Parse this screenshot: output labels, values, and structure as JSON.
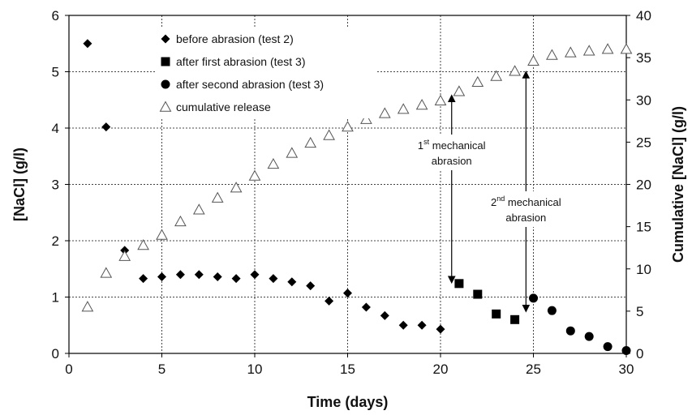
{
  "chart_data": {
    "type": "scatter",
    "xlabel": "Time (days)",
    "ylabel": "[NaCl] (g/l)",
    "y2label": "Cumulative [NaCl] (g/l)",
    "xlim": [
      0,
      30
    ],
    "ylim": [
      0,
      6
    ],
    "y2lim": [
      0,
      40
    ],
    "xticks": [
      "0",
      "5",
      "10",
      "15",
      "20",
      "25",
      "30"
    ],
    "yticks": [
      "0",
      "1",
      "2",
      "3",
      "4",
      "5",
      "6"
    ],
    "y2ticks": [
      "0",
      "5",
      "10",
      "15",
      "20",
      "25",
      "30",
      "35",
      "40"
    ],
    "grid": true,
    "legend_position": "top-left",
    "series": [
      {
        "name": "before abrasion (test 2)",
        "marker": "diamond",
        "axis": "left",
        "x": [
          1,
          2,
          3,
          4,
          5,
          6,
          7,
          8,
          9,
          10,
          11,
          12,
          13,
          14,
          15,
          16,
          17,
          18,
          19,
          20
        ],
        "y": [
          5.5,
          4.02,
          1.83,
          1.33,
          1.36,
          1.4,
          1.4,
          1.36,
          1.33,
          1.4,
          1.33,
          1.27,
          1.2,
          0.93,
          1.07,
          0.82,
          0.67,
          0.5,
          0.5,
          0.43
        ]
      },
      {
        "name": "after first abrasion (test 3)",
        "marker": "square",
        "axis": "left",
        "x": [
          21,
          22,
          23,
          24
        ],
        "y": [
          1.24,
          1.05,
          0.7,
          0.6
        ]
      },
      {
        "name": "after second abrasion (test 3)",
        "marker": "circle",
        "axis": "left",
        "x": [
          25,
          26,
          27,
          28,
          29,
          30
        ],
        "y": [
          0.98,
          0.76,
          0.4,
          0.3,
          0.12,
          0.05
        ]
      },
      {
        "name": "cumulative release",
        "marker": "triangle-open",
        "axis": "right",
        "x": [
          1,
          2,
          3,
          4,
          5,
          6,
          7,
          8,
          9,
          10,
          11,
          12,
          13,
          14,
          15,
          16,
          17,
          18,
          19,
          20,
          21,
          22,
          23,
          24,
          25,
          26,
          27,
          28,
          29,
          30
        ],
        "y": [
          5.5,
          9.5,
          11.5,
          12.8,
          14.0,
          15.6,
          17.0,
          18.4,
          19.6,
          21.0,
          22.4,
          23.7,
          24.9,
          25.8,
          26.8,
          27.7,
          28.4,
          28.9,
          29.4,
          29.9,
          31.0,
          32.1,
          32.8,
          33.4,
          34.6,
          35.3,
          35.6,
          35.8,
          36.0,
          36.0
        ]
      }
    ],
    "annotations": [
      {
        "main": "1",
        "sup": "st",
        "line1_rest": " mechanical",
        "line2": "abrasion",
        "x": 20.6,
        "arrow_from": 30.2,
        "arrow_to": 8.7
      },
      {
        "main": "2",
        "sup": "nd",
        "line1_rest": " mechanical",
        "line2": "abrasion",
        "x": 24.6,
        "arrow_from": 33.0,
        "arrow_to": 5.3
      }
    ]
  }
}
